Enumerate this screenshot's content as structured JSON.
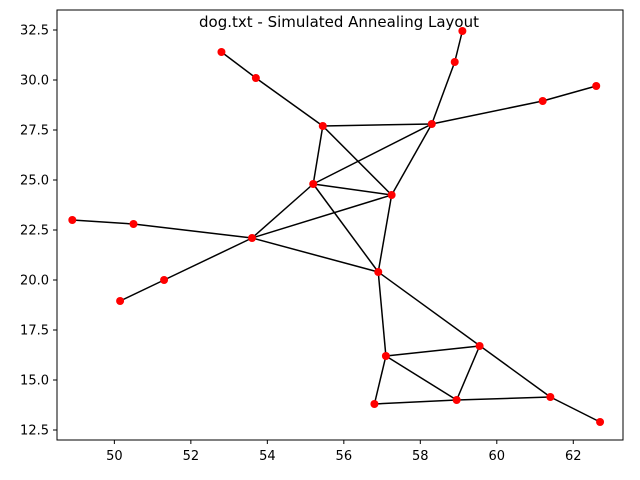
{
  "chart_data": {
    "type": "scatter",
    "title": "dog.txt - Simulated Annealing Layout",
    "xlabel": "",
    "ylabel": "",
    "xlim": [
      48.5,
      63.3
    ],
    "ylim": [
      12.0,
      33.5
    ],
    "xticks": [
      50,
      52,
      54,
      56,
      58,
      60,
      62
    ],
    "yticks": [
      12.5,
      15.0,
      17.5,
      20.0,
      22.5,
      25.0,
      27.5,
      30.0,
      32.5
    ],
    "xtick_labels": [
      "50",
      "52",
      "54",
      "56",
      "58",
      "60",
      "62"
    ],
    "ytick_labels": [
      "12.5",
      "15.0",
      "17.5",
      "20.0",
      "22.5",
      "25.0",
      "27.5",
      "30.0",
      "32.5"
    ],
    "grid": false,
    "node_color": "#ff0000",
    "edge_color": "#000000",
    "nodes": [
      {
        "x": 59.1,
        "y": 32.45
      },
      {
        "x": 58.9,
        "y": 30.9
      },
      {
        "x": 52.8,
        "y": 31.4
      },
      {
        "x": 53.7,
        "y": 30.1
      },
      {
        "x": 62.6,
        "y": 29.7
      },
      {
        "x": 61.2,
        "y": 28.95
      },
      {
        "x": 55.45,
        "y": 27.7
      },
      {
        "x": 58.3,
        "y": 27.8
      },
      {
        "x": 55.2,
        "y": 24.8
      },
      {
        "x": 57.25,
        "y": 24.25
      },
      {
        "x": 48.9,
        "y": 23.0
      },
      {
        "x": 50.5,
        "y": 22.8
      },
      {
        "x": 53.6,
        "y": 22.1
      },
      {
        "x": 56.9,
        "y": 20.4
      },
      {
        "x": 51.3,
        "y": 20.0
      },
      {
        "x": 50.15,
        "y": 18.95
      },
      {
        "x": 59.55,
        "y": 16.7
      },
      {
        "x": 57.1,
        "y": 16.2
      },
      {
        "x": 61.4,
        "y": 14.15
      },
      {
        "x": 58.95,
        "y": 14.0
      },
      {
        "x": 56.8,
        "y": 13.8
      },
      {
        "x": 62.7,
        "y": 12.9
      }
    ],
    "edges": [
      [
        0,
        1
      ],
      [
        1,
        7
      ],
      [
        2,
        3
      ],
      [
        3,
        6
      ],
      [
        4,
        5
      ],
      [
        5,
        7
      ],
      [
        6,
        7
      ],
      [
        6,
        8
      ],
      [
        6,
        9
      ],
      [
        7,
        8
      ],
      [
        7,
        9
      ],
      [
        8,
        9
      ],
      [
        8,
        12
      ],
      [
        8,
        13
      ],
      [
        9,
        12
      ],
      [
        9,
        13
      ],
      [
        10,
        11
      ],
      [
        11,
        12
      ],
      [
        12,
        13
      ],
      [
        12,
        14
      ],
      [
        14,
        15
      ],
      [
        13,
        17
      ],
      [
        13,
        18
      ],
      [
        18,
        21
      ],
      [
        17,
        16
      ],
      [
        17,
        19
      ],
      [
        16,
        19
      ],
      [
        17,
        20
      ],
      [
        20,
        19
      ],
      [
        19,
        18
      ]
    ]
  }
}
